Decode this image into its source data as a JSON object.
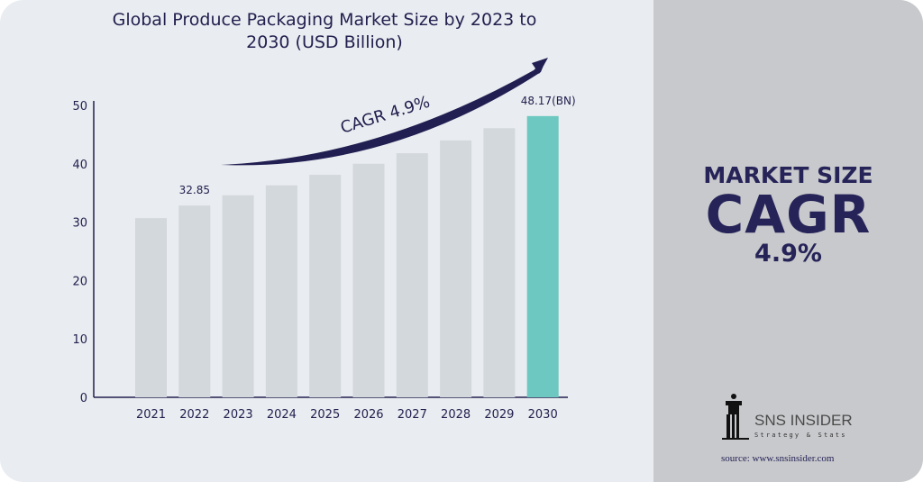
{
  "chart_data": {
    "type": "bar",
    "title": "Global Produce Packaging Market Size by 2023 to 2030 (USD Billion)",
    "categories": [
      "2021",
      "2022",
      "2023",
      "2024",
      "2025",
      "2026",
      "2027",
      "2028",
      "2029",
      "2030"
    ],
    "values": [
      30.7,
      32.85,
      34.6,
      36.3,
      38.1,
      40.0,
      41.8,
      44.0,
      46.1,
      48.17
    ],
    "data_labels": {
      "2022": "32.85",
      "2030": "48.17(BN)"
    },
    "yticks": [
      "0",
      "10",
      "20",
      "30",
      "40",
      "50"
    ],
    "ylim": [
      0,
      50
    ],
    "grid": false,
    "annotation": "CAGR 4.9%",
    "colors": {
      "bar": "#d3d8dd",
      "highlight": "#6cc8c0",
      "axis": "#23204f"
    }
  },
  "side_panel": {
    "line1": "MARKET SIZE",
    "line2": "CAGR",
    "line3": "4.9%"
  },
  "logo": {
    "name": "SNS INSIDER",
    "tagline": "Strategy & Stats"
  },
  "source": "source: www.snsinsider.com"
}
